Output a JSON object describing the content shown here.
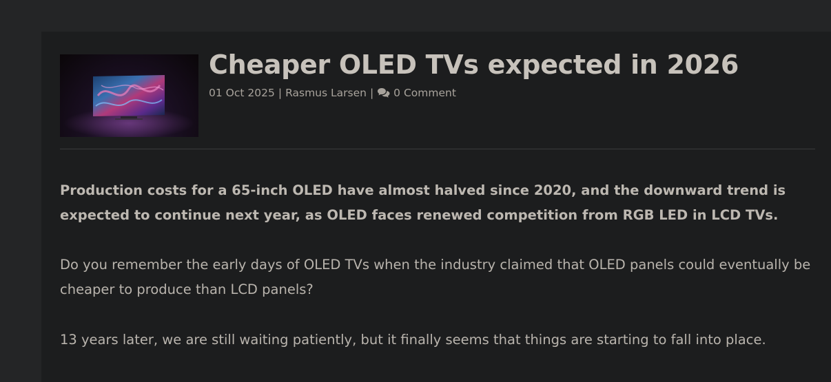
{
  "article": {
    "title": "Cheaper OLED TVs expected in 2026",
    "date": "01 Oct 2025",
    "author": "Rasmus Larsen",
    "comments": "0 Comment",
    "separator": "|",
    "thumbnail_icon": "oled-tv-thumbnail",
    "lead": "Production costs for a 65-inch OLED have almost halved since 2020, and the downward trend is expected to continue next year, as OLED faces renewed competition from RGB LED in LCD TVs.",
    "paragraphs": [
      "Do you remember the early days of OLED TVs when the industry claimed that OLED panels could eventually be cheaper to produce than LCD panels?",
      "13 years later, we are still waiting patiently, but it finally seems that things are starting to fall into place."
    ]
  },
  "colors": {
    "background": "#242526",
    "card": "#1c1d1e",
    "title": "#c7c2bb",
    "text": "#b9b4ad",
    "meta": "#a8a39c",
    "divider": "#3b3c3d"
  }
}
